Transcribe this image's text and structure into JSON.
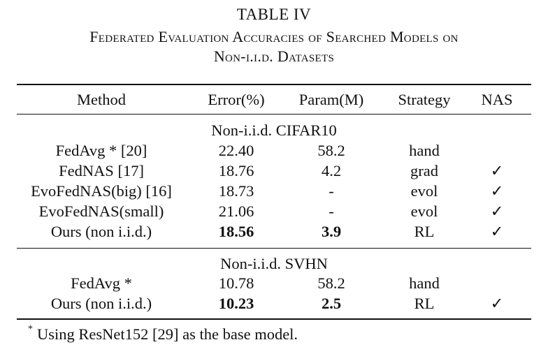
{
  "table": {
    "label": "TABLE IV",
    "title_line1": "Federated Evaluation Accuracies of Searched Models on",
    "title_line2": "Non-i.i.d. Datasets",
    "headers": {
      "method": "Method",
      "error": "Error(%)",
      "param": "Param(M)",
      "strategy": "Strategy",
      "nas": "NAS"
    },
    "groups": [
      {
        "title": "Non-i.i.d. CIFAR10",
        "rows": [
          {
            "method": "FedAvg * [20]",
            "error": "22.40",
            "param": "58.2",
            "strategy": "hand",
            "nas": ""
          },
          {
            "method": "FedNAS [17]",
            "error": "18.76",
            "param": "4.2",
            "strategy": "grad",
            "nas": "✓"
          },
          {
            "method": "EvoFedNAS(big) [16]",
            "error": "18.73",
            "param": "-",
            "strategy": "evol",
            "nas": "✓"
          },
          {
            "method": "EvoFedNAS(small)",
            "error": "21.06",
            "param": "-",
            "strategy": "evol",
            "nas": "✓"
          },
          {
            "method": "Ours (non i.i.d.)",
            "error": "18.56",
            "param": "3.9",
            "strategy": "RL",
            "nas": "✓"
          }
        ]
      },
      {
        "title": "Non-i.i.d. SVHN",
        "rows": [
          {
            "method": "FedAvg *",
            "error": "10.78",
            "param": "58.2",
            "strategy": "hand",
            "nas": ""
          },
          {
            "method": "Ours (non i.i.d.)",
            "error": "10.23",
            "param": "2.5",
            "strategy": "RL",
            "nas": "✓"
          }
        ]
      }
    ],
    "footnote_mark": "*",
    "footnote_text": "Using ResNet152 [29] as the base model."
  }
}
